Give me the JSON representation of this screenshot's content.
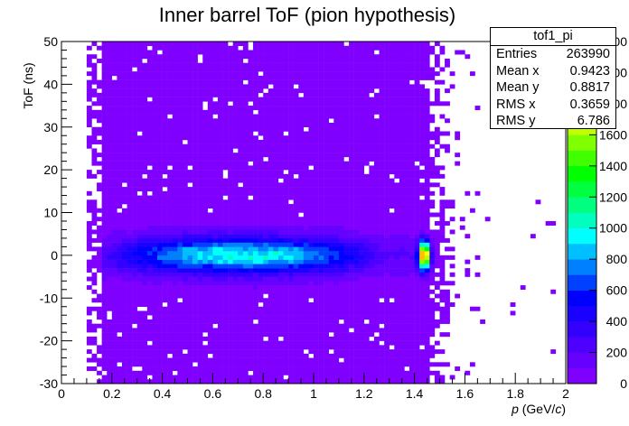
{
  "chart_data": {
    "type": "heatmap",
    "title": "Inner barrel ToF (pion hypothesis)",
    "xlabel_italic": "p",
    "xlabel_rest": " (GeV/",
    "xlabel_c": "c",
    "xlabel_close": ")",
    "ylabel": "ToF (ns)",
    "xlim": [
      0,
      2
    ],
    "ylim": [
      -30,
      50
    ],
    "x_ticks": [
      {
        "value": 0,
        "label": "0"
      },
      {
        "value": 0.2,
        "label": "0.2"
      },
      {
        "value": 0.4,
        "label": "0.4"
      },
      {
        "value": 0.6,
        "label": "0.6"
      },
      {
        "value": 0.8,
        "label": "0.8"
      },
      {
        "value": 1,
        "label": "1"
      },
      {
        "value": 1.2,
        "label": "1.2"
      },
      {
        "value": 1.4,
        "label": "1.4"
      },
      {
        "value": 1.6,
        "label": "1.6"
      },
      {
        "value": 1.8,
        "label": "1.8"
      },
      {
        "value": 2,
        "label": "2"
      }
    ],
    "y_ticks": [
      {
        "value": -30,
        "label": "-30"
      },
      {
        "value": -20,
        "label": "-20"
      },
      {
        "value": -10,
        "label": "-10"
      },
      {
        "value": 0,
        "label": "0"
      },
      {
        "value": 10,
        "label": "10"
      },
      {
        "value": 20,
        "label": "20"
      },
      {
        "value": 30,
        "label": "30"
      },
      {
        "value": 40,
        "label": "40"
      },
      {
        "value": 50,
        "label": "50"
      }
    ],
    "z_ticks": [
      {
        "value": 0,
        "label": "0"
      },
      {
        "value": 200,
        "label": "200"
      },
      {
        "value": 400,
        "label": "400"
      },
      {
        "value": 600,
        "label": "600"
      },
      {
        "value": 800,
        "label": "800"
      },
      {
        "value": 1000,
        "label": "1000"
      },
      {
        "value": 1200,
        "label": "1200"
      },
      {
        "value": 1400,
        "label": "1400"
      },
      {
        "value": 1600,
        "label": "1600"
      }
    ],
    "zlim": [
      0,
      2000
    ],
    "z_hidden_ticks": [
      {
        "value": 1800,
        "label": "00"
      },
      {
        "value": 2000,
        "label": "00"
      },
      {
        "value": 2200,
        "label": "00"
      }
    ],
    "bins": {
      "nx": 100,
      "ny": 80
    },
    "palette": [
      "#8000ff",
      "#6600ff",
      "#4d00ff",
      "#3300ff",
      "#1a00ff",
      "#0000ff",
      "#0040ff",
      "#0080ff",
      "#00bfff",
      "#00ffff",
      "#00ffbf",
      "#00ff80",
      "#00ff40",
      "#00ff00",
      "#40ff00",
      "#80ff00",
      "#bfff00",
      "#ffff00",
      "#ffbf00",
      "#ff8000",
      "#ff4000",
      "#ff0000"
    ],
    "band": {
      "x_start": 0.1,
      "x_end": 1.5,
      "y_center": 0,
      "rms_y": 6.786
    },
    "peak": {
      "x": 1.44,
      "y": 0,
      "max_count": 1900
    },
    "stats": {
      "name": "tof1_pi",
      "rows": [
        {
          "label": "Entries",
          "value": "263990"
        },
        {
          "label": "Mean x",
          "value": "0.9423"
        },
        {
          "label": "Mean y",
          "value": "0.8817"
        },
        {
          "label": "RMS x",
          "value": "0.3659"
        },
        {
          "label": "RMS y",
          "value": "6.786"
        }
      ]
    }
  }
}
